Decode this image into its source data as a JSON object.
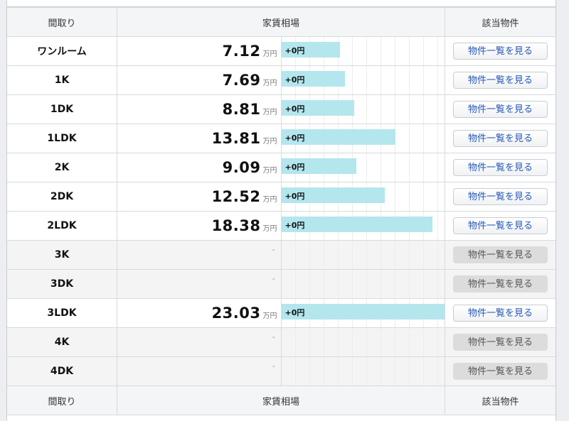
{
  "header": {
    "layout": "間取り",
    "price": "家賃相場",
    "listings": "該当物件"
  },
  "footer": {
    "layout": "間取り",
    "price": "家賃相場",
    "listings": "該当物件"
  },
  "price_unit": "万円",
  "button_label": "物件一覧を見る",
  "rows": [
    {
      "layout": "ワンルーム",
      "price": "7.12",
      "diff": "+0円",
      "available": true
    },
    {
      "layout": "1K",
      "price": "7.69",
      "diff": "+0円",
      "available": true
    },
    {
      "layout": "1DK",
      "price": "8.81",
      "diff": "+0円",
      "available": true
    },
    {
      "layout": "1LDK",
      "price": "13.81",
      "diff": "+0円",
      "available": true
    },
    {
      "layout": "2K",
      "price": "9.09",
      "diff": "+0円",
      "available": true
    },
    {
      "layout": "2DK",
      "price": "12.52",
      "diff": "+0円",
      "available": true
    },
    {
      "layout": "2LDK",
      "price": "18.38",
      "diff": "+0円",
      "available": true
    },
    {
      "layout": "3K",
      "price": "-",
      "diff": "",
      "available": false
    },
    {
      "layout": "3DK",
      "price": "-",
      "diff": "",
      "available": false
    },
    {
      "layout": "3LDK",
      "price": "23.03",
      "diff": "+0円",
      "available": true
    },
    {
      "layout": "4K",
      "price": "-",
      "diff": "",
      "available": false
    },
    {
      "layout": "4DK",
      "price": "-",
      "diff": "",
      "available": false
    }
  ]
}
